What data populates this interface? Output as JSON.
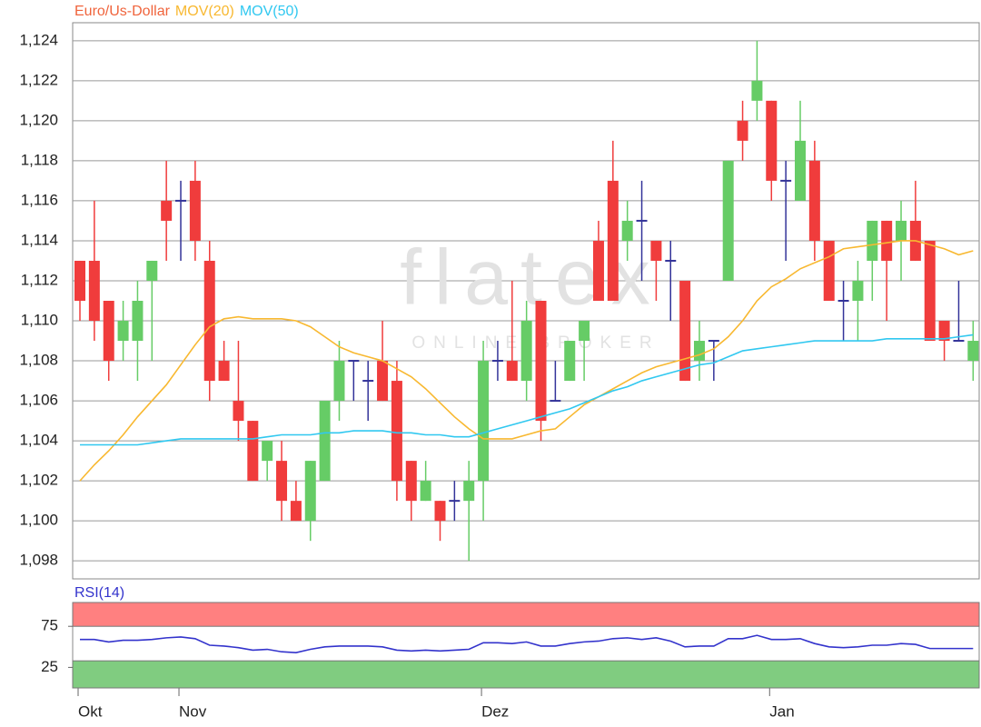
{
  "chart_data": [
    {
      "type": "candlestick",
      "name": "Euro/Us-Dollar",
      "color": "#f0643c",
      "watermark": "flatex",
      "watermark_subtitle": "ONLINE BROKER",
      "up_color": "#66cc66",
      "down_color": "#f03c3c",
      "doji_color": "#333399",
      "categories": [
        "Okt",
        null,
        null,
        null,
        null,
        null,
        null,
        "Nov",
        null,
        null,
        null,
        null,
        null,
        null,
        null,
        null,
        null,
        null,
        null,
        null,
        null,
        null,
        null,
        null,
        null,
        null,
        null,
        null,
        "Dez",
        null,
        null,
        null,
        null,
        null,
        null,
        null,
        null,
        null,
        null,
        null,
        null,
        null,
        null,
        null,
        null,
        null,
        null,
        null,
        "Jan",
        null,
        null,
        null,
        null,
        null,
        null,
        null,
        null,
        null,
        null,
        null,
        null,
        null,
        null
      ],
      "open": [
        1.113,
        1.113,
        1.111,
        1.109,
        1.109,
        1.112,
        1.116,
        1.116,
        1.117,
        1.113,
        1.108,
        1.106,
        1.105,
        1.103,
        1.103,
        1.101,
        1.1,
        1.102,
        1.106,
        1.108,
        1.107,
        1.108,
        1.107,
        1.103,
        1.101,
        1.101,
        1.101,
        1.101,
        1.102,
        1.108,
        1.108,
        1.107,
        1.111,
        1.106,
        1.107,
        1.109,
        1.114,
        1.117,
        1.114,
        1.115,
        1.114,
        1.113,
        1.112,
        1.108,
        1.109,
        1.112,
        1.12,
        1.121,
        1.121,
        1.117,
        1.116,
        1.118,
        1.114,
        1.111,
        1.111,
        1.113,
        1.115,
        1.114,
        1.115,
        1.114,
        1.11,
        1.109,
        1.108
      ],
      "high": [
        1.113,
        1.116,
        1.111,
        1.111,
        1.112,
        1.113,
        1.118,
        1.117,
        1.118,
        1.114,
        1.109,
        1.109,
        1.105,
        1.104,
        1.104,
        1.102,
        1.103,
        1.106,
        1.109,
        1.108,
        1.108,
        1.11,
        1.108,
        1.103,
        1.103,
        1.101,
        1.102,
        1.103,
        1.109,
        1.109,
        1.112,
        1.111,
        1.111,
        1.108,
        1.109,
        1.11,
        1.115,
        1.119,
        1.116,
        1.117,
        1.114,
        1.114,
        1.112,
        1.11,
        1.109,
        1.118,
        1.121,
        1.124,
        1.121,
        1.118,
        1.121,
        1.119,
        1.114,
        1.112,
        1.113,
        1.115,
        1.115,
        1.116,
        1.117,
        1.114,
        1.11,
        1.112,
        1.11
      ],
      "low": [
        1.11,
        1.109,
        1.107,
        1.108,
        1.107,
        1.108,
        1.113,
        1.113,
        1.113,
        1.106,
        1.107,
        1.104,
        1.102,
        1.102,
        1.1,
        1.1,
        1.099,
        1.102,
        1.105,
        1.106,
        1.105,
        1.106,
        1.101,
        1.1,
        1.101,
        1.099,
        1.1,
        1.098,
        1.1,
        1.107,
        1.107,
        1.106,
        1.104,
        1.106,
        1.107,
        1.107,
        1.111,
        1.111,
        1.113,
        1.112,
        1.111,
        1.11,
        1.107,
        1.107,
        1.107,
        1.112,
        1.118,
        1.12,
        1.116,
        1.113,
        1.116,
        1.113,
        1.111,
        1.109,
        1.109,
        1.111,
        1.11,
        1.112,
        1.113,
        1.109,
        1.108,
        1.109,
        1.107
      ],
      "close": [
        1.111,
        1.11,
        1.108,
        1.11,
        1.111,
        1.113,
        1.115,
        1.116,
        1.114,
        1.107,
        1.107,
        1.105,
        1.102,
        1.104,
        1.101,
        1.1,
        1.103,
        1.106,
        1.108,
        1.108,
        1.107,
        1.106,
        1.102,
        1.101,
        1.102,
        1.1,
        1.101,
        1.102,
        1.108,
        1.108,
        1.107,
        1.11,
        1.105,
        1.106,
        1.109,
        1.11,
        1.111,
        1.111,
        1.115,
        1.115,
        1.113,
        1.113,
        1.107,
        1.109,
        1.109,
        1.118,
        1.119,
        1.122,
        1.117,
        1.117,
        1.119,
        1.114,
        1.111,
        1.111,
        1.112,
        1.115,
        1.113,
        1.115,
        1.113,
        1.109,
        1.109,
        1.109,
        1.109
      ],
      "series": [
        {
          "name": "MOV(20)",
          "color": "#f8b830",
          "values": [
            1.102,
            1.1028,
            1.1035,
            1.1043,
            1.1052,
            1.106,
            1.1068,
            1.1078,
            1.1088,
            1.1097,
            1.1101,
            1.1102,
            1.1101,
            1.1101,
            1.1101,
            1.11,
            1.1097,
            1.1092,
            1.1087,
            1.1084,
            1.1082,
            1.108,
            1.1076,
            1.1072,
            1.1066,
            1.1059,
            1.1052,
            1.1046,
            1.1041,
            1.1041,
            1.1041,
            1.1043,
            1.1045,
            1.1046,
            1.1052,
            1.1058,
            1.1062,
            1.1066,
            1.107,
            1.1074,
            1.1077,
            1.1079,
            1.1081,
            1.1083,
            1.1086,
            1.1092,
            1.11,
            1.111,
            1.1117,
            1.1121,
            1.1126,
            1.1129,
            1.1132,
            1.1136,
            1.1137,
            1.1138,
            1.1139,
            1.114,
            1.114,
            1.1138,
            1.1136,
            1.1133,
            1.1135
          ]
        },
        {
          "name": "MOV(50)",
          "color": "#30c8f0",
          "values": [
            1.1038,
            1.1038,
            1.1038,
            1.1038,
            1.1038,
            1.1039,
            1.104,
            1.1041,
            1.1041,
            1.1041,
            1.1041,
            1.1041,
            1.1041,
            1.1042,
            1.1043,
            1.1043,
            1.1043,
            1.1044,
            1.1044,
            1.1045,
            1.1045,
            1.1045,
            1.1044,
            1.1044,
            1.1043,
            1.1043,
            1.1042,
            1.1042,
            1.1044,
            1.1046,
            1.1048,
            1.105,
            1.1052,
            1.1054,
            1.1056,
            1.1059,
            1.1062,
            1.1065,
            1.1067,
            1.107,
            1.1072,
            1.1074,
            1.1076,
            1.1078,
            1.1079,
            1.1082,
            1.1085,
            1.1086,
            1.1087,
            1.1088,
            1.1089,
            1.109,
            1.109,
            1.109,
            1.109,
            1.109,
            1.1091,
            1.1091,
            1.1091,
            1.1091,
            1.1091,
            1.1092,
            1.1093
          ]
        }
      ],
      "ylim": [
        1.0971,
        1.1249
      ],
      "yticks": [
        {
          "value": 1.098,
          "label": "1,098"
        },
        {
          "value": 1.1,
          "label": "1,100"
        },
        {
          "value": 1.102,
          "label": "1,102"
        },
        {
          "value": 1.104,
          "label": "1,104"
        },
        {
          "value": 1.106,
          "label": "1,106"
        },
        {
          "value": 1.108,
          "label": "1,108"
        },
        {
          "value": 1.11,
          "label": "1,110"
        },
        {
          "value": 1.112,
          "label": "1,112"
        },
        {
          "value": 1.114,
          "label": "1,114"
        },
        {
          "value": 1.116,
          "label": "1,116"
        },
        {
          "value": 1.118,
          "label": "1,118"
        },
        {
          "value": 1.12,
          "label": "1,120"
        },
        {
          "value": 1.122,
          "label": "1,122"
        },
        {
          "value": 1.124,
          "label": "1,124"
        }
      ],
      "grid": true
    },
    {
      "type": "line",
      "series": [
        {
          "name": "RSI(14)",
          "color": "#3333cc",
          "values": [
            59,
            59,
            56,
            58,
            58,
            59,
            61,
            62,
            60,
            52,
            51,
            49,
            46,
            47,
            44,
            43,
            47,
            50,
            51,
            51,
            51,
            50,
            46,
            45,
            46,
            45,
            46,
            47,
            55,
            55,
            54,
            56,
            51,
            51,
            54,
            56,
            57,
            60,
            61,
            59,
            61,
            57,
            50,
            51,
            51,
            60,
            60,
            64,
            59,
            59,
            60,
            54,
            50,
            49,
            50,
            52,
            52,
            54,
            53,
            48,
            48,
            48,
            48
          ]
        }
      ],
      "bands": [
        {
          "from": 75,
          "to": 104,
          "color": "#ff8080"
        },
        {
          "from": 0,
          "to": 33,
          "color": "#80cc80"
        }
      ],
      "ylim": [
        0,
        104
      ],
      "yticks": [
        25,
        75
      ]
    }
  ]
}
